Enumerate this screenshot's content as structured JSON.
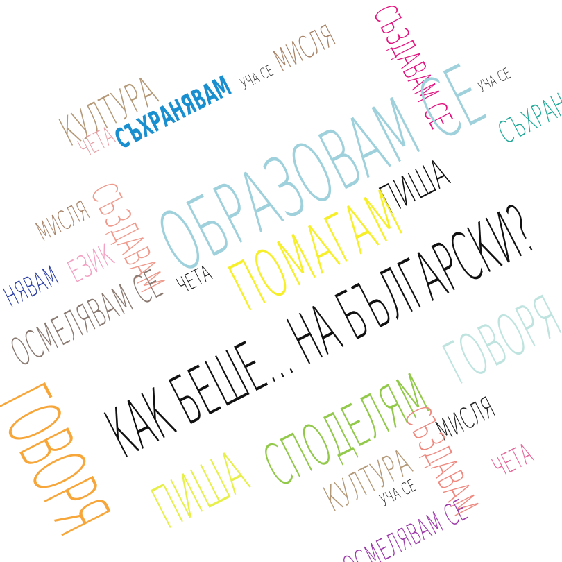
{
  "words": [
    {
      "text": "КУЛТУРА",
      "color": "#b59a7a"
    },
    {
      "text": "МИСЛЯ",
      "color": "#a8856a"
    },
    {
      "text": "УЧА СЕ",
      "color": "#222222"
    },
    {
      "text": "СЪЗДАВАМ СЕ",
      "color": "#e2127f"
    },
    {
      "text": "УЧА СЕ",
      "color": "#222222"
    },
    {
      "text": "СЪХРАНЯВАМ",
      "color": "#1a8fd0"
    },
    {
      "text": "СЪХРАНЯ",
      "color": "#23a99a"
    },
    {
      "text": "ЧЕТА",
      "color": "#e7a1a8"
    },
    {
      "text": "ОБРАЗОВАМ СЕ",
      "color": "#9fd1dc"
    },
    {
      "text": "ПИША",
      "color": "#111111"
    },
    {
      "text": "МИСЛЯ",
      "color": "#a8856a"
    },
    {
      "text": "ЕЗИК",
      "color": "#f2a1c2"
    },
    {
      "text": "СЪЗДАВАМ",
      "color": "#ef9a8c"
    },
    {
      "text": "ПОМАГАМ",
      "color": "#f6ef2a"
    },
    {
      "text": "ЧЕТА",
      "color": "#222222"
    },
    {
      "text": "НЯВАМ",
      "color": "#2b3ea5"
    },
    {
      "text": "ОСМЕЛЯВАМ СЕ",
      "color": "#8a7a72"
    },
    {
      "text": "КАК БЕШЕ... НА БЪЛГАРСКИ?",
      "color": "#111111"
    },
    {
      "text": "ГОВОРЯ",
      "color": "#bfe4e0"
    },
    {
      "text": "ГОВОРЯ",
      "color": "#f7a63a"
    },
    {
      "text": "СПОДЕЛЯМ",
      "color": "#92c94a"
    },
    {
      "text": "ПИША",
      "color": "#e7f04a"
    },
    {
      "text": "МИСЛЯ",
      "color": "#222222"
    },
    {
      "text": "КУЛТУРА",
      "color": "#b59a7a"
    },
    {
      "text": "СЪЗДАВАМ",
      "color": "#ef8a80"
    },
    {
      "text": "ЧЕТА",
      "color": "#e5679a"
    },
    {
      "text": "УЧА СЕ",
      "color": "#222222"
    },
    {
      "text": "ОСМЕЛЯВАМ СЕ",
      "color": "#9b3aa8"
    }
  ]
}
